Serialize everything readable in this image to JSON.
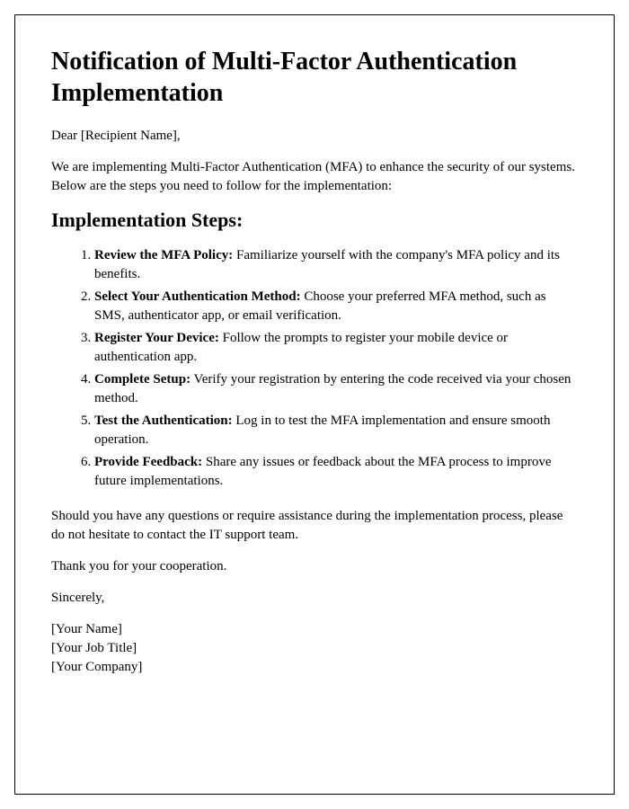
{
  "title": "Notification of Multi-Factor Authentication Implementation",
  "salutation": "Dear [Recipient Name],",
  "intro": "We are implementing Multi-Factor Authentication (MFA) to enhance the security of our systems. Below are the steps you need to follow for the implementation:",
  "steps_heading": "Implementation Steps:",
  "steps": [
    {
      "title": "Review the MFA Policy:",
      "desc": " Familiarize yourself with the company's MFA policy and its benefits."
    },
    {
      "title": "Select Your Authentication Method:",
      "desc": " Choose your preferred MFA method, such as SMS, authenticator app, or email verification."
    },
    {
      "title": "Register Your Device:",
      "desc": " Follow the prompts to register your mobile device or authentication app."
    },
    {
      "title": "Complete Setup:",
      "desc": " Verify your registration by entering the code received via your chosen method."
    },
    {
      "title": "Test the Authentication:",
      "desc": " Log in to test the MFA implementation and ensure smooth operation."
    },
    {
      "title": "Provide Feedback:",
      "desc": " Share any issues or feedback about the MFA process to improve future implementations."
    }
  ],
  "support_note": "Should you have any questions or require assistance during the implementation process, please do not hesitate to contact the IT support team.",
  "thanks": "Thank you for your cooperation.",
  "closing": "Sincerely,",
  "signer_name": "[Your Name]",
  "signer_title": "[Your Job Title]",
  "signer_company": "[Your Company]",
  "colors": {
    "text": "#000000",
    "background": "#ffffff",
    "border": "#000000"
  },
  "typography": {
    "font_family": "Times New Roman",
    "h1_size_pt": 21,
    "h2_size_pt": 17,
    "body_size_pt": 11
  }
}
